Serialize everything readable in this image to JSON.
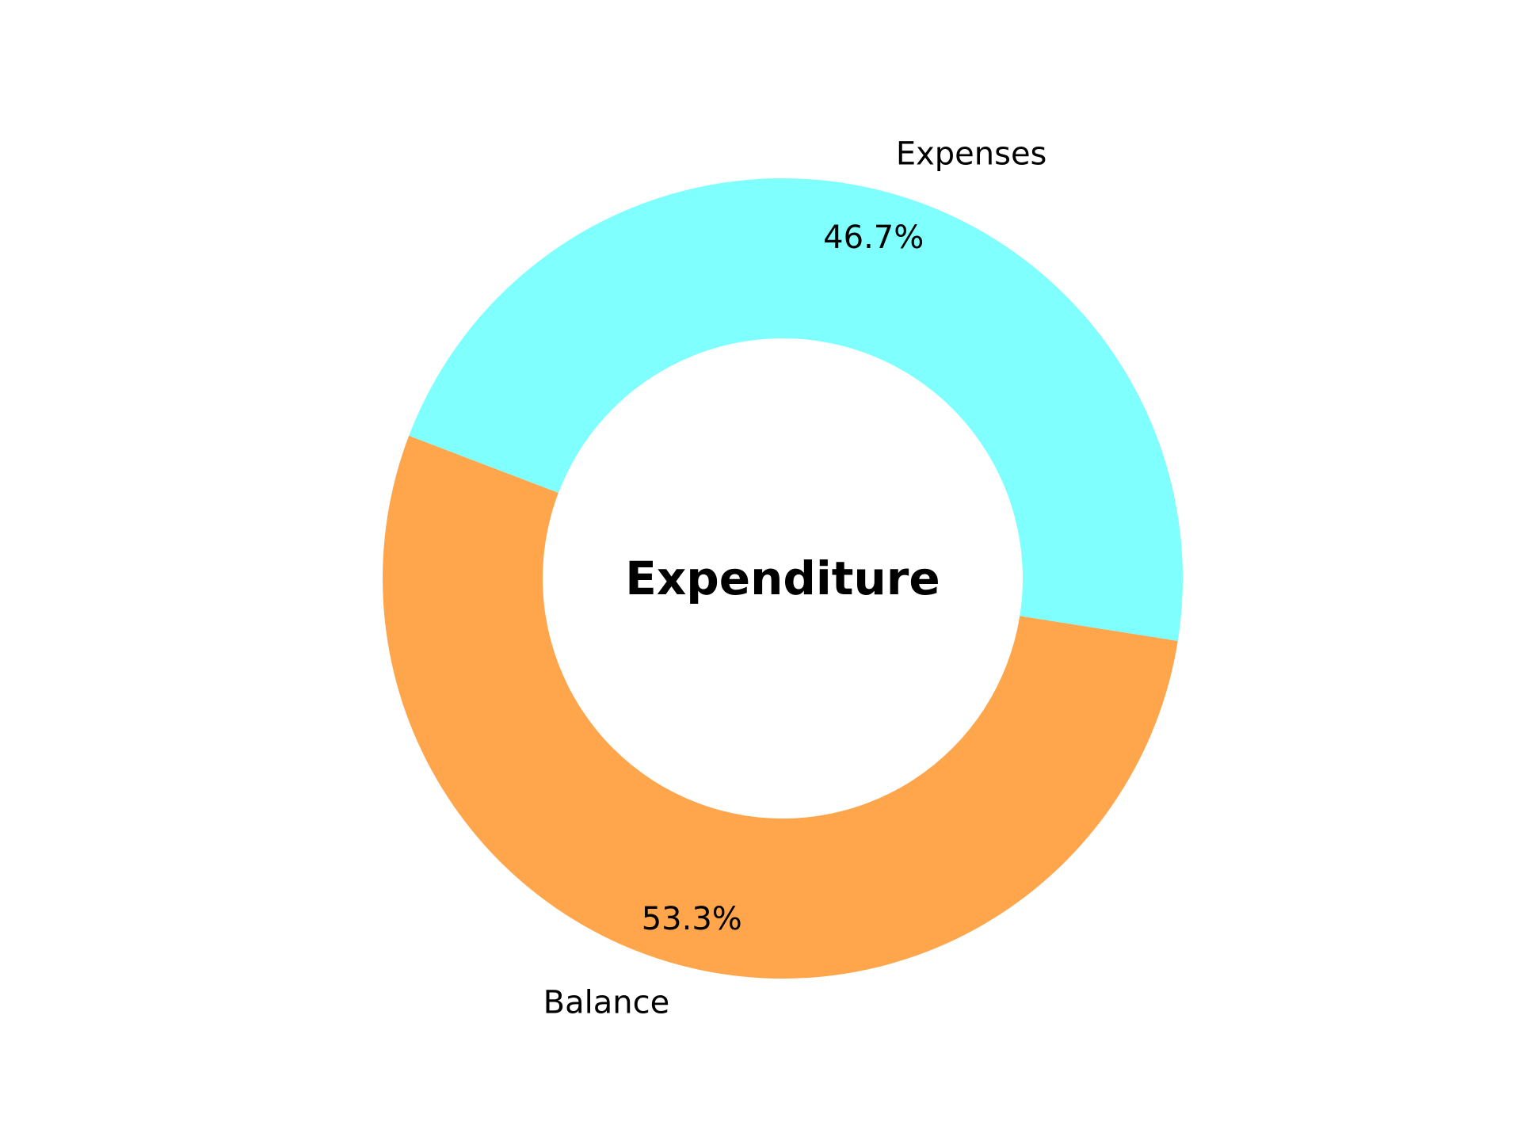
{
  "chart_data": {
    "type": "pie",
    "style": "donut",
    "center_text": "Expenditure",
    "slices": [
      {
        "label": "Expenses",
        "value": 46.7,
        "value_label": "46.7%",
        "color": "#80ffff"
      },
      {
        "label": "Balance",
        "value": 53.3,
        "value_label": "53.3%",
        "color": "#ffa64d"
      }
    ],
    "legend": "none"
  }
}
